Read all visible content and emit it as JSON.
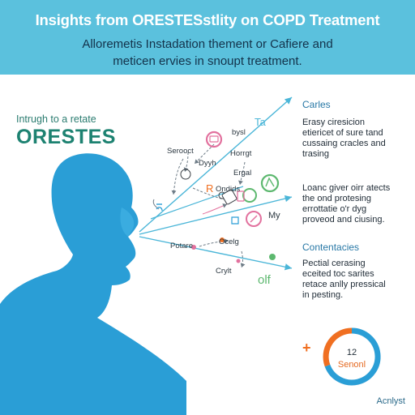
{
  "header": {
    "title": "Insights from ORESTESstlity on COPD Treatment",
    "subtitle_line1": "Alloremetis Instadation thement or Cafiere and",
    "subtitle_line2": "meticen ervies in snoupt treatment."
  },
  "intro": {
    "lead": "Intrugh to a retate",
    "brand": "ORESTES"
  },
  "diagram_labels": [
    {
      "key": "ta",
      "text": "Ta"
    },
    {
      "key": "bysl",
      "text": "bysl"
    },
    {
      "key": "serooct",
      "text": "Serooct"
    },
    {
      "key": "horrgt",
      "text": "Horrgt"
    },
    {
      "key": "dyyh",
      "text": "Dyyh"
    },
    {
      "key": "ergal",
      "text": "Ergal"
    },
    {
      "key": "r-letter",
      "text": "R"
    },
    {
      "key": "ondids",
      "text": "Ondids"
    },
    {
      "key": "my",
      "text": "My"
    },
    {
      "key": "potare",
      "text": "Potare"
    },
    {
      "key": "ocelg",
      "text": "Ocelg"
    },
    {
      "key": "crylt",
      "text": "Crylt"
    },
    {
      "key": "olf",
      "text": "olf"
    }
  ],
  "sections": [
    {
      "title": "Carles",
      "lines": [
        "Erasy ciresicion",
        "etiericet of sure tand",
        "cussaing cracles and",
        "trasing"
      ]
    },
    {
      "title": "",
      "lines": [
        "Loanc giver oirr atects",
        "the ond protesing",
        "errottatie o'r dyg",
        "proveod and ciusing."
      ]
    },
    {
      "title": "Contentacies",
      "lines": [
        "Pectial cerasing",
        "eceited toc sarites",
        "retace anlly pressical",
        "in pesting."
      ]
    }
  ],
  "gauge": {
    "value": "12",
    "caption": "Senonl"
  },
  "footer": "Acnlyst",
  "colors": {
    "header_bg": "#5bc1dd",
    "silhouette": "#2a9ed6",
    "brand": "#1d8271",
    "arrow": "#4bb6d8",
    "accent_orange": "#f06f21",
    "pink": "#e2719e",
    "green": "#5db86f"
  },
  "icons": [
    "head-silhouette-icon",
    "node-circle-icons",
    "plus-icon",
    "ring-gauge-icon"
  ]
}
